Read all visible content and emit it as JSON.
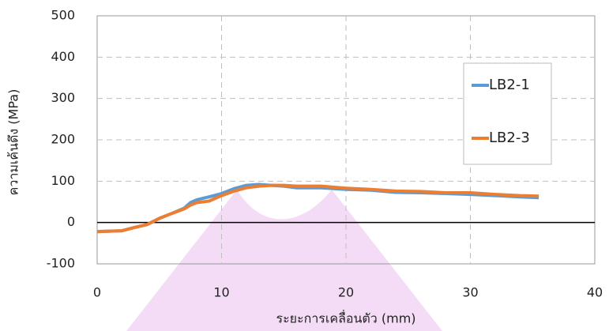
{
  "chart_data": {
    "type": "line",
    "x_label": "ระยะการเคลื่อนตัว (mm)",
    "y_label": "ความเค้นดึง (MPa)",
    "x": [
      0,
      2,
      3,
      4,
      5,
      6,
      7,
      7.5,
      8,
      9,
      10,
      11,
      12,
      13,
      14,
      15,
      16,
      18,
      20,
      22,
      24,
      26,
      28,
      30,
      32,
      34,
      35.5
    ],
    "series": [
      {
        "name": "LB2-1",
        "color": "#5b9bd5",
        "values": [
          -22,
          -20,
          -12,
          -5,
          10,
          22,
          35,
          48,
          55,
          62,
          70,
          82,
          90,
          92,
          90,
          88,
          84,
          84,
          80,
          78,
          73,
          72,
          70,
          68,
          65,
          62,
          60
        ]
      },
      {
        "name": "LB2-3",
        "color": "#ed7d31",
        "values": [
          -22,
          -20,
          -12,
          -5,
          10,
          22,
          33,
          42,
          48,
          52,
          65,
          76,
          84,
          88,
          90,
          90,
          88,
          88,
          83,
          80,
          76,
          75,
          72,
          72,
          68,
          65,
          64
        ]
      }
    ],
    "xlim": [
      0,
      40
    ],
    "xticks": [
      0,
      10,
      20,
      30,
      40
    ],
    "ylim": [
      -100,
      500
    ],
    "yticks": [
      -100,
      0,
      100,
      200,
      300,
      400,
      500
    ],
    "grid": true,
    "legend": "upper right"
  }
}
